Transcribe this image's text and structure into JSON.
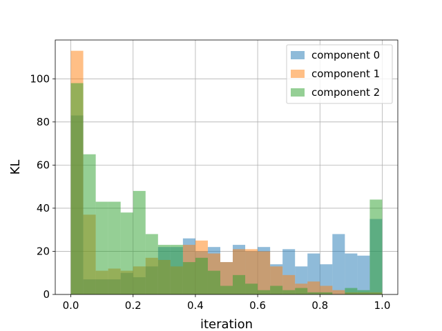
{
  "chart_data": {
    "type": "bar",
    "subtype": "overlaid-histogram",
    "title": "",
    "xlabel": "iteration",
    "ylabel": "KL",
    "xlim": [
      -0.05,
      1.05
    ],
    "ylim": [
      0,
      118
    ],
    "xticks": [
      0.0,
      0.2,
      0.4,
      0.6,
      0.8,
      1.0
    ],
    "xtick_labels": [
      "0.0",
      "0.2",
      "0.4",
      "0.6",
      "0.8",
      "1.0"
    ],
    "yticks": [
      0,
      20,
      40,
      60,
      80,
      100
    ],
    "ytick_labels": [
      "0",
      "20",
      "40",
      "60",
      "80",
      "100"
    ],
    "grid": true,
    "legend_position": "top-right",
    "bin_range": [
      0,
      1
    ],
    "bins": 25,
    "series": [
      {
        "name": "component 0",
        "color": "#1f77b4",
        "values": [
          83,
          7,
          7,
          7,
          10,
          8,
          13,
          22,
          22,
          26,
          20,
          22,
          15,
          23,
          20,
          22,
          14,
          21,
          13,
          19,
          14,
          28,
          19,
          18,
          35
        ]
      },
      {
        "name": "component 1",
        "color": "#ff7f0e",
        "values": [
          113,
          37,
          11,
          12,
          11,
          13,
          17,
          16,
          13,
          23,
          25,
          19,
          15,
          21,
          21,
          20,
          13,
          9,
          5,
          6,
          4,
          2,
          1,
          1,
          1
        ]
      },
      {
        "name": "component 2",
        "color": "#2ca02c",
        "values": [
          98,
          65,
          43,
          43,
          38,
          48,
          28,
          23,
          23,
          15,
          17,
          11,
          4,
          9,
          5,
          2,
          4,
          2,
          3,
          1,
          1,
          0,
          3,
          2,
          44
        ]
      }
    ]
  }
}
